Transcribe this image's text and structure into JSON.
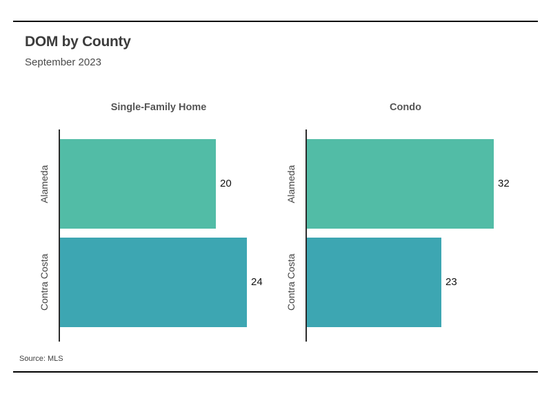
{
  "page": {
    "title": "DOM by County",
    "subtitle": "September 2023",
    "source": "Source: MLS"
  },
  "colors": {
    "bar_alameda": "#52BCA6",
    "bar_contra_costa": "#3DA6B2",
    "axis_line": "#2b2b2b",
    "rule_line": "#000000",
    "title_text": "#3c3c3c",
    "facet_title_text": "#555555",
    "category_label_text": "#444444",
    "value_label_text": "#111111"
  },
  "chart_data": {
    "type": "bar",
    "orientation": "horizontal",
    "title": "DOM by County",
    "subtitle": "September 2023",
    "xlabel": "",
    "ylabel": "",
    "grid": false,
    "legend": false,
    "value_labels_shown": true,
    "categories": [
      "Alameda",
      "Contra Costa"
    ],
    "series_colors": [
      "#52BCA6",
      "#3DA6B2"
    ],
    "facets": [
      {
        "title": "Single-Family Home",
        "categories": [
          "Alameda",
          "Contra Costa"
        ],
        "values": [
          20,
          24
        ]
      },
      {
        "title": "Condo",
        "categories": [
          "Alameda",
          "Contra Costa"
        ],
        "values": [
          32,
          23
        ]
      }
    ],
    "source": "Source: MLS"
  }
}
